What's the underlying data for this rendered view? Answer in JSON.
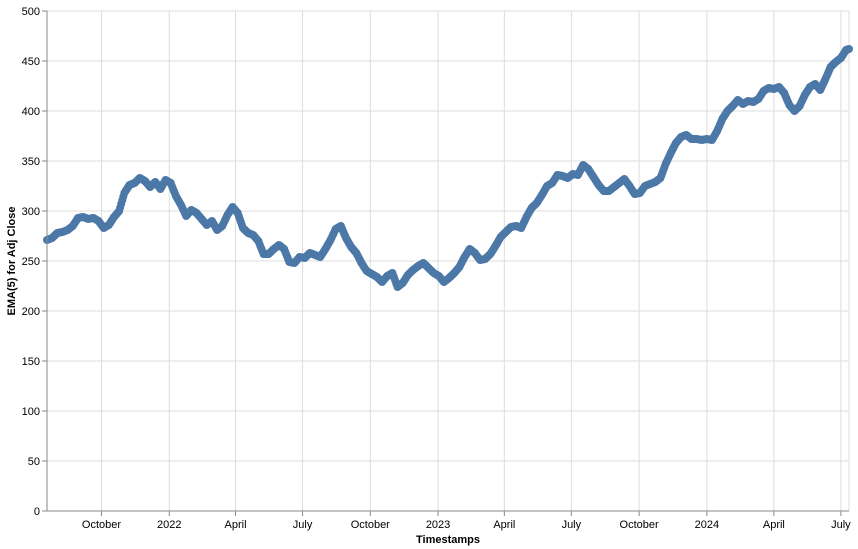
{
  "chart_data": {
    "type": "scatter",
    "xlabel": "Timestamps",
    "ylabel": "EMA(5) for Adj Close",
    "x_range": [
      "2021-07-19",
      "2024-07-12"
    ],
    "ylim": [
      0,
      500
    ],
    "y_ticks": [
      0,
      50,
      100,
      150,
      200,
      250,
      300,
      350,
      400,
      450,
      500
    ],
    "x_ticks": [
      {
        "date": "2021-10-01",
        "label": "October"
      },
      {
        "date": "2022-01-01",
        "label": "2022"
      },
      {
        "date": "2022-04-01",
        "label": "April"
      },
      {
        "date": "2022-07-01",
        "label": "July"
      },
      {
        "date": "2022-10-01",
        "label": "October"
      },
      {
        "date": "2023-01-01",
        "label": "2023"
      },
      {
        "date": "2023-04-01",
        "label": "April"
      },
      {
        "date": "2023-07-01",
        "label": "July"
      },
      {
        "date": "2023-10-01",
        "label": "October"
      },
      {
        "date": "2024-01-01",
        "label": "2024"
      },
      {
        "date": "2024-04-01",
        "label": "April"
      },
      {
        "date": "2024-07-01",
        "label": "July"
      }
    ],
    "grid": true,
    "point_color": "#4c78a8",
    "series": [
      {
        "points": [
          [
            "2021-07-19",
            271
          ],
          [
            "2021-07-26",
            273
          ],
          [
            "2021-08-02",
            278
          ],
          [
            "2021-08-09",
            279
          ],
          [
            "2021-08-16",
            281
          ],
          [
            "2021-08-23",
            285
          ],
          [
            "2021-08-30",
            293
          ],
          [
            "2021-09-06",
            294
          ],
          [
            "2021-09-13",
            292
          ],
          [
            "2021-09-20",
            293
          ],
          [
            "2021-09-27",
            290
          ],
          [
            "2021-10-04",
            283
          ],
          [
            "2021-10-11",
            286
          ],
          [
            "2021-10-18",
            294
          ],
          [
            "2021-10-25",
            300
          ],
          [
            "2021-11-01",
            318
          ],
          [
            "2021-11-08",
            326
          ],
          [
            "2021-11-15",
            328
          ],
          [
            "2021-11-22",
            333
          ],
          [
            "2021-11-29",
            330
          ],
          [
            "2021-12-06",
            324
          ],
          [
            "2021-12-13",
            329
          ],
          [
            "2021-12-20",
            322
          ],
          [
            "2021-12-27",
            331
          ],
          [
            "2022-01-03",
            328
          ],
          [
            "2022-01-10",
            315
          ],
          [
            "2022-01-17",
            306
          ],
          [
            "2022-01-24",
            295
          ],
          [
            "2022-01-31",
            301
          ],
          [
            "2022-02-07",
            298
          ],
          [
            "2022-02-14",
            292
          ],
          [
            "2022-02-21",
            286
          ],
          [
            "2022-02-28",
            290
          ],
          [
            "2022-03-07",
            281
          ],
          [
            "2022-03-14",
            285
          ],
          [
            "2022-03-21",
            296
          ],
          [
            "2022-03-28",
            304
          ],
          [
            "2022-04-04",
            298
          ],
          [
            "2022-04-11",
            283
          ],
          [
            "2022-04-18",
            278
          ],
          [
            "2022-04-25",
            276
          ],
          [
            "2022-05-02",
            270
          ],
          [
            "2022-05-09",
            257
          ],
          [
            "2022-05-16",
            257
          ],
          [
            "2022-05-23",
            262
          ],
          [
            "2022-05-30",
            266
          ],
          [
            "2022-06-06",
            262
          ],
          [
            "2022-06-13",
            249
          ],
          [
            "2022-06-20",
            248
          ],
          [
            "2022-06-27",
            254
          ],
          [
            "2022-07-04",
            253
          ],
          [
            "2022-07-11",
            258
          ],
          [
            "2022-07-18",
            256
          ],
          [
            "2022-07-25",
            254
          ],
          [
            "2022-08-01",
            262
          ],
          [
            "2022-08-08",
            271
          ],
          [
            "2022-08-15",
            282
          ],
          [
            "2022-08-22",
            285
          ],
          [
            "2022-08-29",
            273
          ],
          [
            "2022-09-05",
            264
          ],
          [
            "2022-09-12",
            258
          ],
          [
            "2022-09-19",
            248
          ],
          [
            "2022-09-26",
            240
          ],
          [
            "2022-10-03",
            237
          ],
          [
            "2022-10-10",
            234
          ],
          [
            "2022-10-17",
            229
          ],
          [
            "2022-10-24",
            235
          ],
          [
            "2022-10-31",
            238
          ],
          [
            "2022-11-07",
            224
          ],
          [
            "2022-11-14",
            228
          ],
          [
            "2022-11-21",
            236
          ],
          [
            "2022-11-28",
            241
          ],
          [
            "2022-12-05",
            245
          ],
          [
            "2022-12-12",
            248
          ],
          [
            "2022-12-19",
            243
          ],
          [
            "2022-12-26",
            238
          ],
          [
            "2023-01-02",
            235
          ],
          [
            "2023-01-09",
            229
          ],
          [
            "2023-01-16",
            233
          ],
          [
            "2023-01-23",
            238
          ],
          [
            "2023-01-30",
            244
          ],
          [
            "2023-02-06",
            254
          ],
          [
            "2023-02-13",
            262
          ],
          [
            "2023-02-20",
            258
          ],
          [
            "2023-02-27",
            251
          ],
          [
            "2023-03-06",
            252
          ],
          [
            "2023-03-13",
            257
          ],
          [
            "2023-03-20",
            265
          ],
          [
            "2023-03-27",
            274
          ],
          [
            "2023-04-03",
            279
          ],
          [
            "2023-04-10",
            284
          ],
          [
            "2023-04-17",
            285
          ],
          [
            "2023-04-24",
            283
          ],
          [
            "2023-05-01",
            294
          ],
          [
            "2023-05-08",
            303
          ],
          [
            "2023-05-15",
            308
          ],
          [
            "2023-05-22",
            316
          ],
          [
            "2023-05-29",
            325
          ],
          [
            "2023-06-05",
            328
          ],
          [
            "2023-06-12",
            336
          ],
          [
            "2023-06-19",
            335
          ],
          [
            "2023-06-26",
            333
          ],
          [
            "2023-07-03",
            337
          ],
          [
            "2023-07-10",
            336
          ],
          [
            "2023-07-17",
            346
          ],
          [
            "2023-07-24",
            342
          ],
          [
            "2023-07-31",
            334
          ],
          [
            "2023-08-07",
            326
          ],
          [
            "2023-08-14",
            320
          ],
          [
            "2023-08-21",
            320
          ],
          [
            "2023-08-28",
            324
          ],
          [
            "2023-09-04",
            328
          ],
          [
            "2023-09-11",
            332
          ],
          [
            "2023-09-18",
            325
          ],
          [
            "2023-09-25",
            317
          ],
          [
            "2023-10-02",
            318
          ],
          [
            "2023-10-09",
            325
          ],
          [
            "2023-10-16",
            327
          ],
          [
            "2023-10-23",
            329
          ],
          [
            "2023-10-30",
            333
          ],
          [
            "2023-11-06",
            347
          ],
          [
            "2023-11-13",
            358
          ],
          [
            "2023-11-20",
            368
          ],
          [
            "2023-11-27",
            374
          ],
          [
            "2023-12-04",
            376
          ],
          [
            "2023-12-11",
            372
          ],
          [
            "2023-12-18",
            372
          ],
          [
            "2023-12-25",
            371
          ],
          [
            "2024-01-01",
            372
          ],
          [
            "2024-01-08",
            371
          ],
          [
            "2024-01-15",
            380
          ],
          [
            "2024-01-22",
            392
          ],
          [
            "2024-01-29",
            400
          ],
          [
            "2024-02-05",
            405
          ],
          [
            "2024-02-12",
            411
          ],
          [
            "2024-02-19",
            407
          ],
          [
            "2024-02-26",
            410
          ],
          [
            "2024-03-04",
            409
          ],
          [
            "2024-03-11",
            412
          ],
          [
            "2024-03-18",
            420
          ],
          [
            "2024-03-25",
            423
          ],
          [
            "2024-04-01",
            422
          ],
          [
            "2024-04-08",
            424
          ],
          [
            "2024-04-15",
            418
          ],
          [
            "2024-04-22",
            406
          ],
          [
            "2024-04-29",
            400
          ],
          [
            "2024-05-06",
            405
          ],
          [
            "2024-05-13",
            416
          ],
          [
            "2024-05-20",
            424
          ],
          [
            "2024-05-27",
            427
          ],
          [
            "2024-06-03",
            421
          ],
          [
            "2024-06-10",
            432
          ],
          [
            "2024-06-17",
            444
          ],
          [
            "2024-06-24",
            449
          ],
          [
            "2024-07-01",
            453
          ],
          [
            "2024-07-08",
            461
          ],
          [
            "2024-07-12",
            462
          ]
        ]
      }
    ]
  }
}
